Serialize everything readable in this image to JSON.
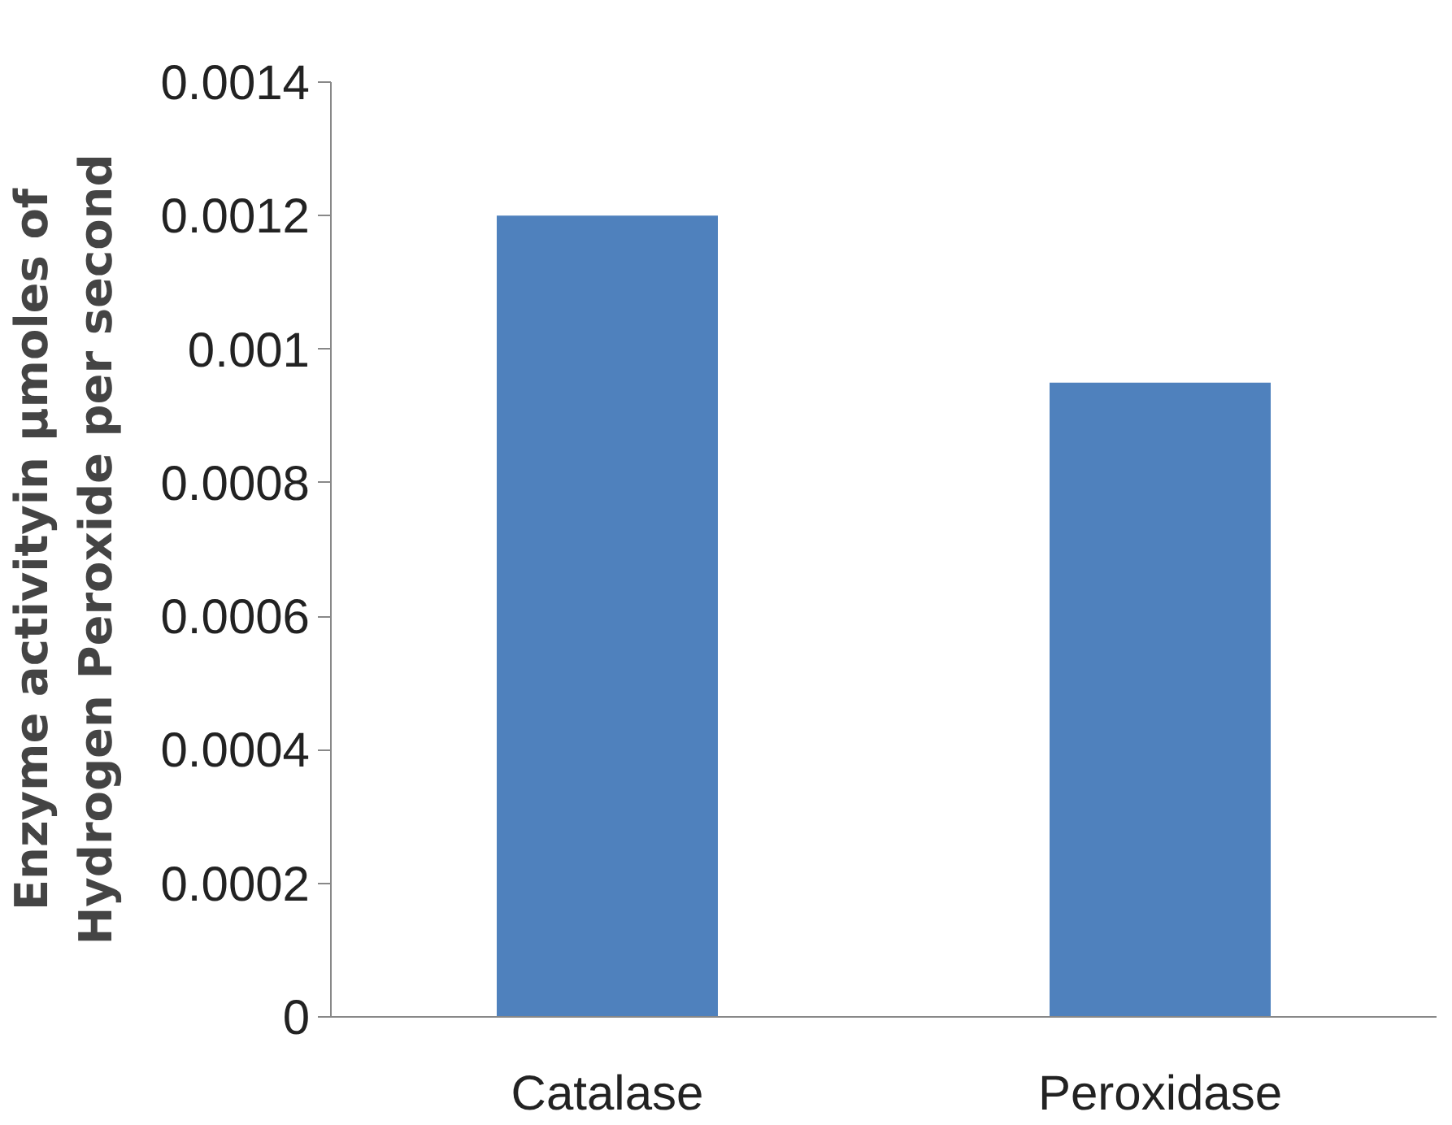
{
  "chart_data": {
    "type": "bar",
    "ylabel": "Enzyme activityin µmoles of\nHydrogen Peroxide per second",
    "categories": [
      "Catalase",
      "Peroxidase"
    ],
    "series": [
      {
        "color": "#4f81bd",
        "values": [
          0.0012,
          0.00095
        ]
      }
    ],
    "ylim": [
      0,
      0.0014
    ],
    "yticks": [
      0,
      0.0002,
      0.0004,
      0.0006,
      0.0008,
      0.001,
      0.0012,
      0.0014
    ]
  }
}
